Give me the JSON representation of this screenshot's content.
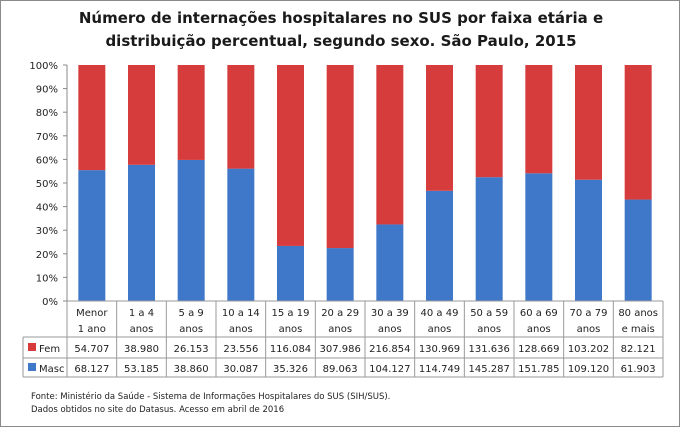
{
  "chart_data": {
    "type": "bar",
    "stacked": "percent",
    "title_line1": "Número de internações hospitalares no SUS por faixa etária e",
    "title_line2": "distribuição percentual, segundo sexo. São Paulo, 2015",
    "categories": [
      [
        "Menor",
        "1 ano"
      ],
      [
        "1 a 4",
        "anos"
      ],
      [
        "5 a 9",
        "anos"
      ],
      [
        "10 a 14",
        "anos"
      ],
      [
        "15 a 19",
        "anos"
      ],
      [
        "20 a 29",
        "anos"
      ],
      [
        "30 a 39",
        "anos"
      ],
      [
        "40 a 49",
        "anos"
      ],
      [
        "50 a 59",
        "anos"
      ],
      [
        "60 a 69",
        "anos"
      ],
      [
        "70 a 79",
        "anos"
      ],
      [
        "80 anos",
        "e mais"
      ]
    ],
    "series": [
      {
        "name": "Fem",
        "color": "#d73c3c",
        "values": [
          54707,
          38980,
          26153,
          23556,
          116084,
          307986,
          216854,
          130969,
          131636,
          128669,
          103202,
          82121
        ]
      },
      {
        "name": "Masc",
        "color": "#3f78c8",
        "values": [
          68127,
          53185,
          38860,
          30087,
          35326,
          89063,
          104127,
          114749,
          145287,
          151785,
          109120,
          61903
        ]
      }
    ],
    "yticks": [
      "0%",
      "10%",
      "20%",
      "30%",
      "40%",
      "50%",
      "60%",
      "70%",
      "80%",
      "90%",
      "100%"
    ],
    "ylim": [
      0,
      100
    ],
    "grid": false,
    "legend": "data-table"
  },
  "footer": {
    "line1": "Fonte: Ministério da Saúde - Sistema de Informações Hospitalares do SUS (SIH/SUS).",
    "line2": "Dados obtidos no site do Datasus. Acesso em abril de 2016"
  }
}
